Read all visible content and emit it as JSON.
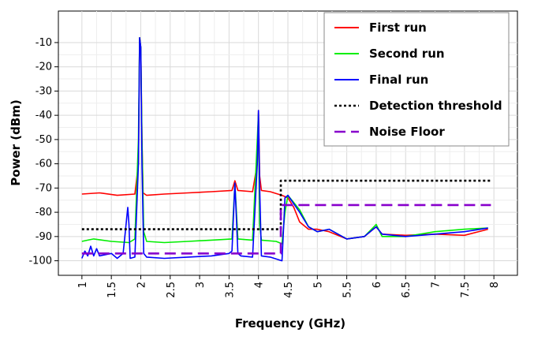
{
  "chart_data": {
    "type": "line",
    "title": "",
    "xlabel": "Frequency (GHz)",
    "ylabel": "Power (dBm)",
    "xlim": [
      0.6,
      8.4
    ],
    "ylim": [
      -106,
      3
    ],
    "x_ticks": [
      1,
      1.5,
      2,
      2.5,
      3,
      3.5,
      4,
      4.5,
      5,
      5.5,
      6,
      6.5,
      7,
      7.5,
      8
    ],
    "x_tick_labels": [
      "1",
      "1.5",
      "2",
      "2.5",
      "3",
      "3.5",
      "4",
      "4.5",
      "5",
      "5.5",
      "6",
      "6.5",
      "7",
      "7.5",
      "8"
    ],
    "y_ticks": [
      -100,
      -90,
      -80,
      -70,
      -60,
      -50,
      -40,
      -30,
      -20,
      -10
    ],
    "y_tick_labels": [
      "-100",
      "-90",
      "-80",
      "-70",
      "-60",
      "-50",
      "-40",
      "-30",
      "-20",
      "-10"
    ],
    "grid": true,
    "legend_position": "top-right",
    "series": [
      {
        "name": "First run",
        "color": "#ff0000",
        "style": "solid",
        "x": [
          1,
          1.3,
          1.6,
          1.9,
          1.96,
          1.98,
          2.0,
          2.02,
          2.04,
          2.1,
          2.4,
          2.8,
          3.2,
          3.55,
          3.6,
          3.65,
          3.9,
          3.98,
          4.0,
          4.02,
          4.05,
          4.2,
          4.4,
          4.5,
          4.6,
          4.7,
          4.85,
          5.0,
          5.2,
          5.5,
          5.8,
          6.0,
          6.1,
          6.5,
          7.0,
          7.5,
          7.9
        ],
        "y": [
          -72.5,
          -72,
          -73,
          -72.5,
          -60,
          -8,
          -12,
          -50,
          -72,
          -73,
          -72.5,
          -72,
          -71.5,
          -71,
          -67,
          -71,
          -71.5,
          -60,
          -38,
          -65,
          -71,
          -71.5,
          -73,
          -74,
          -78,
          -84,
          -87,
          -87,
          -88,
          -91,
          -90,
          -86,
          -89,
          -89.5,
          -89,
          -89.5,
          -87
        ]
      },
      {
        "name": "Second run",
        "color": "#00ee00",
        "style": "solid",
        "x": [
          1,
          1.1,
          1.2,
          1.5,
          1.8,
          1.9,
          1.96,
          1.98,
          2.0,
          2.02,
          2.05,
          2.1,
          2.4,
          2.8,
          3.2,
          3.55,
          3.6,
          3.65,
          3.9,
          3.98,
          4.0,
          4.02,
          4.05,
          4.3,
          4.4,
          4.45,
          4.5,
          4.7,
          4.85,
          5.0,
          5.2,
          5.5,
          5.8,
          6.0,
          6.1,
          6.5,
          7.0,
          7.5,
          7.9
        ],
        "y": [
          -92,
          -91.5,
          -91,
          -92,
          -92.5,
          -91,
          -50,
          -8,
          -12,
          -50,
          -88,
          -92,
          -92.5,
          -92,
          -91.5,
          -91,
          -68,
          -91,
          -91.5,
          -50,
          -39,
          -85,
          -91.5,
          -92,
          -93,
          -80,
          -73,
          -79,
          -86,
          -88,
          -87,
          -91,
          -90,
          -85,
          -90,
          -90,
          -88,
          -87,
          -86.5
        ]
      },
      {
        "name": "Final run",
        "color": "#0000ff",
        "style": "solid",
        "x": [
          1,
          1.05,
          1.1,
          1.15,
          1.2,
          1.25,
          1.3,
          1.5,
          1.6,
          1.7,
          1.78,
          1.8,
          1.82,
          1.9,
          1.96,
          1.98,
          2.0,
          2.02,
          2.05,
          2.1,
          2.4,
          2.8,
          3.2,
          3.5,
          3.55,
          3.6,
          3.65,
          3.7,
          3.9,
          3.98,
          4.0,
          4.02,
          4.05,
          4.2,
          4.4,
          4.42,
          4.45,
          4.5,
          4.7,
          4.85,
          5.0,
          5.2,
          5.5,
          5.8,
          6.0,
          6.1,
          6.5,
          7.0,
          7.5,
          7.9
        ],
        "y": [
          -99,
          -96,
          -98,
          -94,
          -98,
          -95,
          -98,
          -97,
          -99,
          -97,
          -78,
          -85,
          -99,
          -98.5,
          -60,
          -8,
          -12,
          -60,
          -97,
          -98.5,
          -99,
          -98.5,
          -98,
          -97,
          -96,
          -68,
          -97,
          -98,
          -98.5,
          -60,
          -38,
          -70,
          -98,
          -98.5,
          -100,
          -90,
          -74,
          -73,
          -80,
          -86,
          -88,
          -87,
          -91,
          -90,
          -86,
          -89,
          -90,
          -89,
          -88,
          -86.5
        ]
      },
      {
        "name": "Detection threshold",
        "color": "#000000",
        "style": "dotted",
        "x": [
          1,
          4.38,
          4.38,
          7.95
        ],
        "y": [
          -87,
          -87,
          -67,
          -67
        ]
      },
      {
        "name": "Noise Floor",
        "color": "#8800cc",
        "style": "dashed",
        "x": [
          1,
          4.38,
          4.38,
          7.95
        ],
        "y": [
          -97,
          -97,
          -77,
          -77
        ]
      }
    ]
  }
}
